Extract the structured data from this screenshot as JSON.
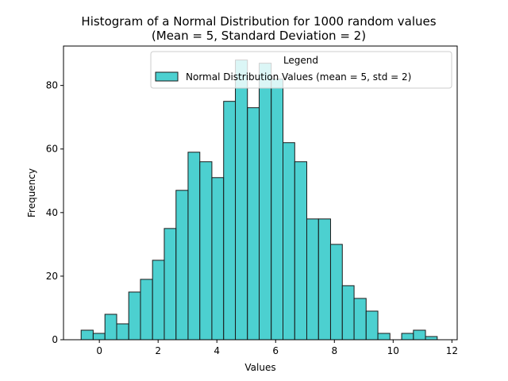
{
  "chart_data": {
    "type": "bar",
    "title_line1": "Histogram of a Normal Distribution for 1000 random values",
    "title_line2": "(Mean = 5, Standard Deviation = 2)",
    "xlabel": "Values",
    "ylabel": "Frequency",
    "xlim": [
      -1.22,
      12.18
    ],
    "ylim": [
      0,
      92.4
    ],
    "xticks": [
      0,
      2,
      4,
      6,
      8,
      10,
      12
    ],
    "yticks": [
      0,
      20,
      40,
      60,
      80
    ],
    "bin_edges": [
      -0.62,
      -0.21,
      0.19,
      0.59,
      1.0,
      1.4,
      1.81,
      2.21,
      2.61,
      3.02,
      3.42,
      3.83,
      4.23,
      4.63,
      5.04,
      5.44,
      5.85,
      6.25,
      6.65,
      7.06,
      7.46,
      7.87,
      8.27,
      8.67,
      9.08,
      9.48,
      9.89,
      10.29,
      10.69,
      11.1,
      11.5
    ],
    "counts": [
      3,
      2,
      8,
      5,
      15,
      19,
      25,
      35,
      47,
      59,
      56,
      51,
      75,
      88,
      73,
      87,
      82,
      62,
      56,
      38,
      38,
      30,
      17,
      13,
      9,
      2,
      0,
      2,
      3,
      1
    ],
    "bar_color": "#1fc4c4",
    "bar_edge_color": "#1a1a1a",
    "legend": {
      "title": "Legend",
      "label": "Normal Distribution Values (mean = 5, std = 2)",
      "placement": "upper right"
    }
  }
}
